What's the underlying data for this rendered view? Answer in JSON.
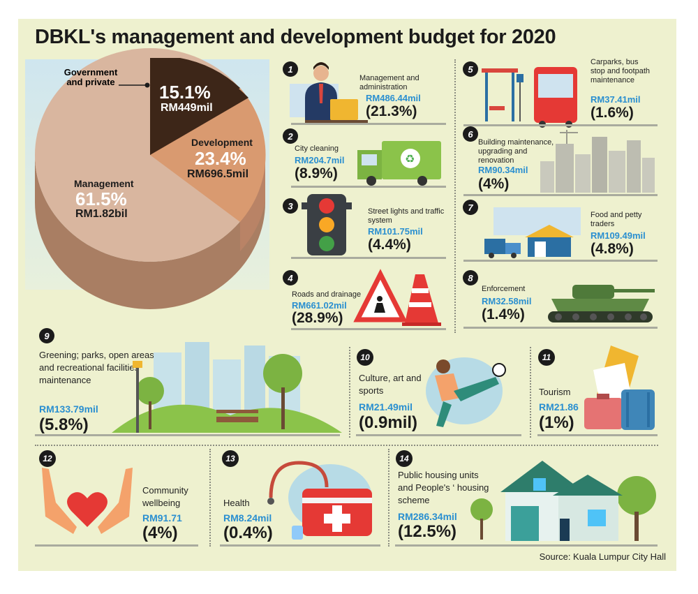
{
  "title": "DBKL's management and development budget for 2020",
  "source": "Source: Kuala Lumpur City Hall",
  "pie": {
    "government": {
      "label": "Government and private",
      "pct": "15.1%",
      "amount": "RM449mil",
      "value": 15.1
    },
    "development": {
      "label": "Development",
      "pct": "23.4%",
      "amount": "RM696.5mil",
      "value": 23.4
    },
    "management": {
      "label": "Management",
      "pct": "61.5%",
      "amount": "RM1.82bil",
      "value": 61.5
    },
    "colors": {
      "government": "#3d2618",
      "development": "#d99a70",
      "management": "#d9b69f",
      "side": "#a97e63"
    }
  },
  "items": [
    {
      "num": "1",
      "label": "Management and administration",
      "amount": "RM486.44mil",
      "pct": "(21.3%)",
      "icon": "office-worker"
    },
    {
      "num": "2",
      "label": "City cleaning",
      "amount": "RM204.7mil",
      "pct": "(8.9%)",
      "icon": "garbage-truck"
    },
    {
      "num": "3",
      "label": "Street lights and traffic system",
      "amount": "RM101.75mil",
      "pct": "(4.4%)",
      "icon": "traffic-light"
    },
    {
      "num": "4",
      "label": "Roads and drainage",
      "amount": "RM661.02mil",
      "pct": "(28.9%)",
      "icon": "roadwork-sign"
    },
    {
      "num": "5",
      "label": "Carparks, bus stop and footpath maintenance",
      "amount": "RM37.41mil",
      "pct": "(1.6%)",
      "icon": "bus-stop"
    },
    {
      "num": "6",
      "label": "Building maintenance, upgrading and renovation",
      "amount": "RM90.34mil",
      "pct": "(4%)",
      "icon": "city-buildings"
    },
    {
      "num": "7",
      "label": "Food and petty traders",
      "amount": "RM109.49mil",
      "pct": "(4.8%)",
      "icon": "market-stall"
    },
    {
      "num": "8",
      "label": "Enforcement",
      "amount": "RM32.58mil",
      "pct": "(1.4%)",
      "icon": "tank"
    },
    {
      "num": "9",
      "label": "Greening; parks, open areas and recreational facilities maintenance",
      "amount": "RM133.79mil",
      "pct": "(5.8%)",
      "icon": "park"
    },
    {
      "num": "10",
      "label": "Culture, art and sports",
      "amount": "RM21.49mil",
      "pct": "(0.9mil)",
      "icon": "football-player"
    },
    {
      "num": "11",
      "label": "Tourism",
      "amount": "RM21.86",
      "pct": "(1%)",
      "icon": "luggage"
    },
    {
      "num": "12",
      "label": "Community wellbeing",
      "amount": "RM91.71",
      "pct": "(4%)",
      "icon": "heart-hands"
    },
    {
      "num": "13",
      "label": "Health",
      "amount": "RM8.24mil",
      "pct": "(0.4%)",
      "icon": "medical-kit"
    },
    {
      "num": "14",
      "label": "Public housing units and People's ‘ housing scheme",
      "amount": "RM286.34mil",
      "pct": "(12.5%)",
      "icon": "house"
    }
  ]
}
